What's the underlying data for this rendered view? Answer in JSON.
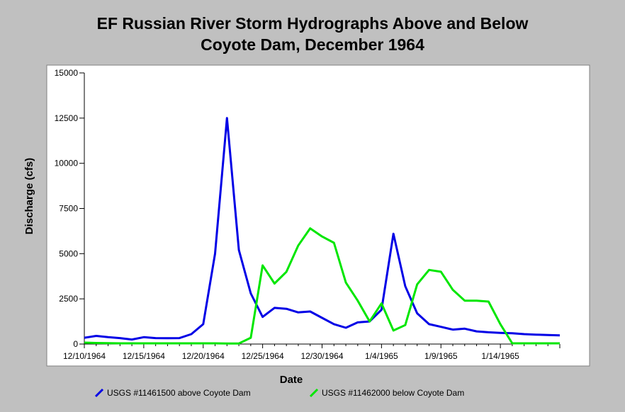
{
  "chart_data": {
    "type": "line",
    "title_line1": "EF Russian River Storm Hydrographs Above and Below",
    "title_line2": "Coyote Dam, December 1964",
    "xlabel": "Date",
    "ylabel": "Discharge (cfs)",
    "ylim": [
      0,
      15000
    ],
    "yticks": [
      0,
      2500,
      5000,
      7500,
      10000,
      12500,
      15000
    ],
    "xlim": [
      "12/10/1964",
      "1/19/1965"
    ],
    "xticks": [
      {
        "date": "12/10/1964",
        "label": "12/10/1964"
      },
      {
        "date": "12/15/1964",
        "label": "12/15/1964"
      },
      {
        "date": "12/20/1964",
        "label": "12/20/1964"
      },
      {
        "date": "12/25/1964",
        "label": "12/25/1964"
      },
      {
        "date": "12/30/1964",
        "label": "12/30/1964"
      },
      {
        "date": "1/4/1965",
        "label": "1/4/1965"
      },
      {
        "date": "1/9/1965",
        "label": "1/9/1965"
      },
      {
        "date": "1/14/1965",
        "label": "1/14/1965"
      }
    ],
    "grid": false,
    "legend_position": "bottom",
    "series": [
      {
        "name": "USGS #11461500 above Coyote Dam",
        "color": "#0000e6",
        "points": [
          [
            "12/10/1964",
            350
          ],
          [
            "12/11/1964",
            450
          ],
          [
            "12/12/1964",
            380
          ],
          [
            "12/13/1964",
            330
          ],
          [
            "12/14/1964",
            250
          ],
          [
            "12/15/1964",
            380
          ],
          [
            "12/16/1964",
            330
          ],
          [
            "12/17/1964",
            320
          ],
          [
            "12/18/1964",
            330
          ],
          [
            "12/19/1964",
            550
          ],
          [
            "12/20/1964",
            1100
          ],
          [
            "12/21/1964",
            5000
          ],
          [
            "12/22/1964",
            12500
          ],
          [
            "12/23/1964",
            5200
          ],
          [
            "12/24/1964",
            2800
          ],
          [
            "12/25/1964",
            1500
          ],
          [
            "12/26/1964",
            2000
          ],
          [
            "12/27/1964",
            1950
          ],
          [
            "12/28/1964",
            1750
          ],
          [
            "12/29/1964",
            1800
          ],
          [
            "12/30/1964",
            1450
          ],
          [
            "12/31/1964",
            1100
          ],
          [
            "1/1/1965",
            900
          ],
          [
            "1/2/1965",
            1200
          ],
          [
            "1/3/1965",
            1250
          ],
          [
            "1/4/1965",
            1900
          ],
          [
            "1/5/1965",
            6100
          ],
          [
            "1/6/1965",
            3200
          ],
          [
            "1/7/1965",
            1700
          ],
          [
            "1/8/1965",
            1100
          ],
          [
            "1/9/1965",
            950
          ],
          [
            "1/10/1965",
            800
          ],
          [
            "1/11/1965",
            850
          ],
          [
            "1/12/1965",
            700
          ],
          [
            "1/13/1965",
            650
          ],
          [
            "1/14/1965",
            620
          ],
          [
            "1/15/1965",
            600
          ],
          [
            "1/16/1965",
            550
          ],
          [
            "1/17/1965",
            520
          ],
          [
            "1/18/1965",
            500
          ],
          [
            "1/19/1965",
            480
          ]
        ]
      },
      {
        "name": "USGS #11462000 below Coyote Dam",
        "color": "#00e600",
        "points": [
          [
            "12/10/1964",
            80
          ],
          [
            "12/11/1964",
            60
          ],
          [
            "12/12/1964",
            50
          ],
          [
            "12/13/1964",
            40
          ],
          [
            "12/14/1964",
            40
          ],
          [
            "12/15/1964",
            40
          ],
          [
            "12/16/1964",
            40
          ],
          [
            "12/17/1964",
            40
          ],
          [
            "12/18/1964",
            40
          ],
          [
            "12/19/1964",
            40
          ],
          [
            "12/20/1964",
            40
          ],
          [
            "12/21/1964",
            40
          ],
          [
            "12/22/1964",
            30
          ],
          [
            "12/23/1964",
            30
          ],
          [
            "12/24/1964",
            350
          ],
          [
            "12/25/1964",
            4350
          ],
          [
            "12/26/1964",
            3350
          ],
          [
            "12/27/1964",
            4000
          ],
          [
            "12/28/1964",
            5450
          ],
          [
            "12/29/1964",
            6400
          ],
          [
            "12/30/1964",
            5950
          ],
          [
            "12/31/1964",
            5600
          ],
          [
            "1/1/1965",
            3400
          ],
          [
            "1/2/1965",
            2400
          ],
          [
            "1/3/1965",
            1250
          ],
          [
            "1/4/1965",
            2250
          ],
          [
            "1/5/1965",
            750
          ],
          [
            "1/6/1965",
            1050
          ],
          [
            "1/7/1965",
            3300
          ],
          [
            "1/8/1965",
            4100
          ],
          [
            "1/9/1965",
            4000
          ],
          [
            "1/10/1965",
            3000
          ],
          [
            "1/11/1965",
            2400
          ],
          [
            "1/12/1965",
            2400
          ],
          [
            "1/13/1965",
            2350
          ],
          [
            "1/14/1965",
            1100
          ],
          [
            "1/15/1965",
            40
          ],
          [
            "1/16/1965",
            40
          ],
          [
            "1/17/1965",
            40
          ],
          [
            "1/18/1965",
            40
          ],
          [
            "1/19/1965",
            40
          ]
        ]
      }
    ]
  }
}
